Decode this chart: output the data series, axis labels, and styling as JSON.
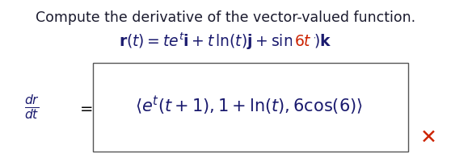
{
  "title": "Compute the derivative of the vector-valued function.",
  "title_color": "#1a1a2e",
  "title_fontsize": 12.5,
  "bg_color": "#ffffff",
  "red_color": "#cc2200",
  "navy_color": "#1a1a6e",
  "box_edge_color": "#555555",
  "x_mark_color": "#cc2200",
  "func_fontsize": 13.5,
  "answer_fontsize": 15,
  "lhs_fontsize": 14
}
